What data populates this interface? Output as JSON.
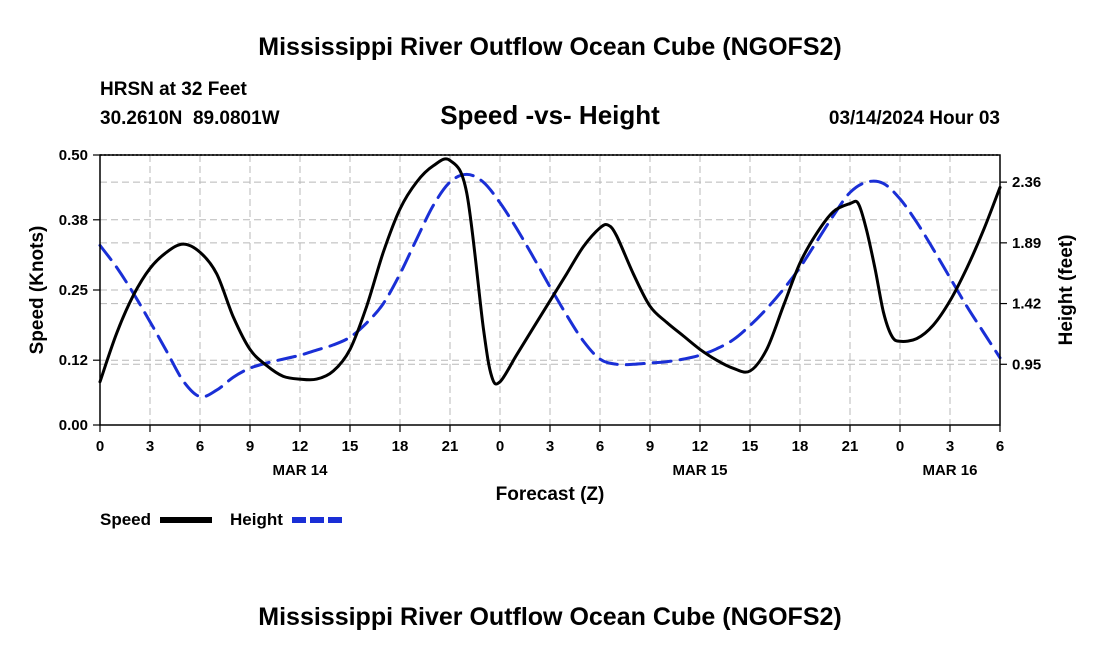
{
  "page": {
    "title": "Mississippi River Outflow Ocean Cube (NGOFS2)",
    "title_repeat": "Mississippi River Outflow Ocean Cube (NGOFS2)",
    "station": "HRSN at 32 Feet",
    "coords": "30.2610N  89.0801W",
    "subtitle": "Speed -vs- Height",
    "datetime": "03/14/2024 Hour 03"
  },
  "chart_data": {
    "type": "line",
    "title": "Speed -vs- Height",
    "xlabel": "Forecast (Z)",
    "ylabel_left": "Speed (Knots)",
    "ylabel_right": "Height (feet)",
    "x_range_hours": [
      0,
      54
    ],
    "x_ticks": [
      {
        "hour": 0,
        "label": "0"
      },
      {
        "hour": 3,
        "label": "3"
      },
      {
        "hour": 6,
        "label": "6"
      },
      {
        "hour": 9,
        "label": "9"
      },
      {
        "hour": 12,
        "label": "12"
      },
      {
        "hour": 15,
        "label": "15"
      },
      {
        "hour": 18,
        "label": "18"
      },
      {
        "hour": 21,
        "label": "21"
      },
      {
        "hour": 24,
        "label": "0"
      },
      {
        "hour": 27,
        "label": "3"
      },
      {
        "hour": 30,
        "label": "6"
      },
      {
        "hour": 33,
        "label": "9"
      },
      {
        "hour": 36,
        "label": "12"
      },
      {
        "hour": 39,
        "label": "15"
      },
      {
        "hour": 42,
        "label": "18"
      },
      {
        "hour": 45,
        "label": "21"
      },
      {
        "hour": 48,
        "label": "0"
      },
      {
        "hour": 51,
        "label": "3"
      },
      {
        "hour": 54,
        "label": "6"
      }
    ],
    "date_labels": [
      {
        "hour": 12,
        "label": "MAR 14"
      },
      {
        "hour": 36,
        "label": "MAR 15"
      },
      {
        "hour": 51,
        "label": "MAR 16"
      }
    ],
    "y_left": {
      "min": 0,
      "max": 0.5,
      "ticks": [
        0.0,
        0.12,
        0.25,
        0.38,
        0.5
      ],
      "tick_labels": [
        "0.00",
        "0.12",
        "0.25",
        "0.38",
        "0.50"
      ]
    },
    "y_right": {
      "min": 0.48,
      "max": 2.57,
      "ticks": [
        0.95,
        1.42,
        1.89,
        2.36
      ],
      "tick_labels": [
        "0.95",
        "1.42",
        "1.89",
        "2.36"
      ]
    },
    "series": [
      {
        "name": "Speed",
        "axis": "left",
        "color": "#000000",
        "dashed": false,
        "points": [
          [
            0,
            0.08
          ],
          [
            1,
            0.17
          ],
          [
            2,
            0.24
          ],
          [
            3,
            0.29
          ],
          [
            4,
            0.32
          ],
          [
            5,
            0.335
          ],
          [
            6,
            0.32
          ],
          [
            7,
            0.28
          ],
          [
            8,
            0.2
          ],
          [
            9,
            0.14
          ],
          [
            10,
            0.11
          ],
          [
            11,
            0.09
          ],
          [
            12,
            0.085
          ],
          [
            13,
            0.085
          ],
          [
            14,
            0.1
          ],
          [
            15,
            0.14
          ],
          [
            16,
            0.22
          ],
          [
            17,
            0.32
          ],
          [
            18,
            0.4
          ],
          [
            19,
            0.45
          ],
          [
            20,
            0.48
          ],
          [
            21,
            0.49
          ],
          [
            22,
            0.43
          ],
          [
            23,
            0.18
          ],
          [
            23.5,
            0.09
          ],
          [
            24,
            0.08
          ],
          [
            25,
            0.13
          ],
          [
            26,
            0.18
          ],
          [
            27,
            0.23
          ],
          [
            28,
            0.28
          ],
          [
            29,
            0.33
          ],
          [
            30,
            0.365
          ],
          [
            30.5,
            0.37
          ],
          [
            31,
            0.35
          ],
          [
            32,
            0.28
          ],
          [
            33,
            0.22
          ],
          [
            34,
            0.19
          ],
          [
            35,
            0.165
          ],
          [
            36,
            0.14
          ],
          [
            37,
            0.12
          ],
          [
            38,
            0.105
          ],
          [
            39,
            0.1
          ],
          [
            40,
            0.14
          ],
          [
            41,
            0.22
          ],
          [
            42,
            0.3
          ],
          [
            43,
            0.355
          ],
          [
            44,
            0.395
          ],
          [
            45,
            0.41
          ],
          [
            45.5,
            0.41
          ],
          [
            46,
            0.36
          ],
          [
            46.5,
            0.29
          ],
          [
            47,
            0.21
          ],
          [
            47.5,
            0.165
          ],
          [
            48,
            0.155
          ],
          [
            49,
            0.16
          ],
          [
            50,
            0.185
          ],
          [
            51,
            0.23
          ],
          [
            52,
            0.29
          ],
          [
            53,
            0.36
          ],
          [
            54,
            0.44
          ]
        ]
      },
      {
        "name": "Height",
        "axis": "right",
        "color": "#1a2fd6",
        "dashed": true,
        "points": [
          [
            0,
            1.87
          ],
          [
            1,
            1.7
          ],
          [
            2,
            1.5
          ],
          [
            3,
            1.28
          ],
          [
            4,
            1.05
          ],
          [
            5,
            0.82
          ],
          [
            6,
            0.7
          ],
          [
            7,
            0.75
          ],
          [
            8,
            0.85
          ],
          [
            9,
            0.92
          ],
          [
            10,
            0.96
          ],
          [
            11,
            0.99
          ],
          [
            12,
            1.02
          ],
          [
            13,
            1.06
          ],
          [
            14,
            1.1
          ],
          [
            15,
            1.16
          ],
          [
            16,
            1.27
          ],
          [
            17,
            1.42
          ],
          [
            18,
            1.65
          ],
          [
            19,
            1.92
          ],
          [
            20,
            2.18
          ],
          [
            21,
            2.36
          ],
          [
            22,
            2.42
          ],
          [
            23,
            2.36
          ],
          [
            24,
            2.2
          ],
          [
            25,
            2.0
          ],
          [
            26,
            1.78
          ],
          [
            27,
            1.55
          ],
          [
            28,
            1.33
          ],
          [
            29,
            1.13
          ],
          [
            30,
            0.99
          ],
          [
            31,
            0.95
          ],
          [
            32,
            0.95
          ],
          [
            33,
            0.96
          ],
          [
            34,
            0.97
          ],
          [
            35,
            0.99
          ],
          [
            36,
            1.02
          ],
          [
            37,
            1.07
          ],
          [
            38,
            1.14
          ],
          [
            39,
            1.25
          ],
          [
            40,
            1.38
          ],
          [
            41,
            1.53
          ],
          [
            42,
            1.7
          ],
          [
            43,
            1.9
          ],
          [
            44,
            2.1
          ],
          [
            45,
            2.28
          ],
          [
            46,
            2.36
          ],
          [
            47,
            2.35
          ],
          [
            48,
            2.23
          ],
          [
            49,
            2.05
          ],
          [
            50,
            1.84
          ],
          [
            51,
            1.62
          ],
          [
            52,
            1.4
          ],
          [
            53,
            1.2
          ],
          [
            54,
            1.0
          ]
        ]
      }
    ],
    "legend": [
      {
        "label": "Speed",
        "color": "#000000",
        "dashed": false
      },
      {
        "label": "Height",
        "color": "#1a2fd6",
        "dashed": true
      }
    ]
  }
}
